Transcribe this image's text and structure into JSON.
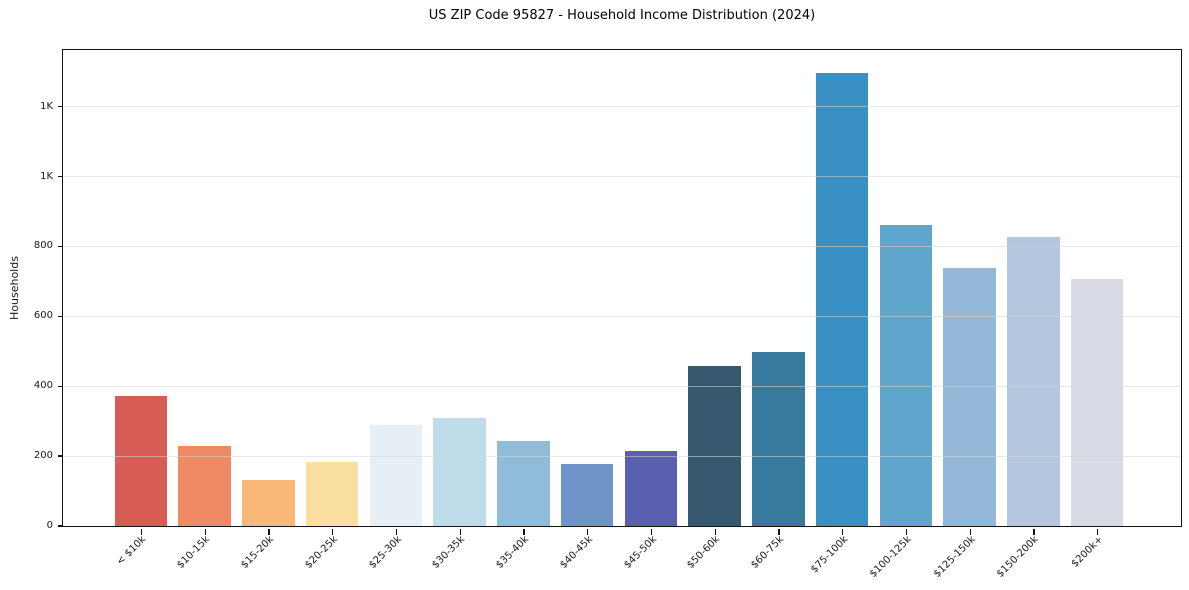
{
  "chart_data": {
    "type": "bar",
    "title": "US ZIP Code 95827 - Household Income Distribution (2024)",
    "xlabel": "",
    "ylabel": "Households",
    "categories": [
      "< $10k",
      "$10-15k",
      "$15-20k",
      "$20-25k",
      "$25-30k",
      "$30-35k",
      "$35-40k",
      "$40-45k",
      "$45-50k",
      "$50-60k",
      "$60-75k",
      "$75-100k",
      "$100-125k",
      "$125-150k",
      "$150-200k",
      "$200k+"
    ],
    "values": [
      373,
      230,
      133,
      184,
      288,
      309,
      244,
      177,
      214,
      457,
      497,
      1297,
      862,
      739,
      828,
      706
    ],
    "bar_colors": [
      "#d75d55",
      "#f08a66",
      "#f9b877",
      "#fbdfa2",
      "#e6f0f4",
      "#bedce9",
      "#90bcda",
      "#7094c8",
      "#5a5fae",
      "#36596f",
      "#387a9e",
      "#3990c4",
      "#5ea6cc",
      "#94b8d8",
      "#b5c7de",
      "#d8dae6"
    ],
    "ylim": [
      0,
      1362
    ],
    "yticks": {
      "values": [
        0,
        200,
        400,
        600,
        800,
        1000,
        1200
      ],
      "labels": [
        "0",
        "200",
        "400",
        "600",
        "800",
        "1K",
        "1K"
      ]
    },
    "grid": "horizontal-only, light gray, drawn over bars",
    "legend": "none",
    "axis_color": "#141414",
    "background_color": "#ffffff"
  }
}
